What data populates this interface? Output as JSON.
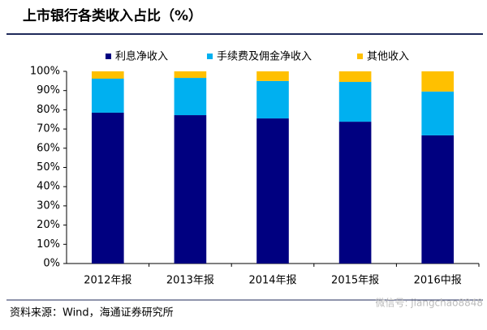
{
  "chart_data": {
    "type": "stacked-bar",
    "title": "上市银行各类收入占比（%）",
    "source": "资料来源：Wind，海通证券研究所",
    "watermark": "微信号: jiangchao8848",
    "categories": [
      "2012年报",
      "2013年报",
      "2014年报",
      "2015年报",
      "2016中报"
    ],
    "series": [
      {
        "name": "利息净收入",
        "color": "#000080",
        "values": [
          78.5,
          77.2,
          75.5,
          73.8,
          66.7
        ]
      },
      {
        "name": "手续费及佣金净收入",
        "color": "#00b0f0",
        "values": [
          17.7,
          19.4,
          19.5,
          20.7,
          22.8
        ]
      },
      {
        "name": "其他收入",
        "color": "#ffc000",
        "values": [
          3.8,
          3.4,
          5.0,
          5.5,
          10.5
        ]
      }
    ],
    "ylim": [
      0,
      100
    ],
    "yticks": [
      {
        "value": 0,
        "label": "0%"
      },
      {
        "value": 10,
        "label": "10%"
      },
      {
        "value": 20,
        "label": "20%"
      },
      {
        "value": 30,
        "label": "30%"
      },
      {
        "value": 40,
        "label": "40%"
      },
      {
        "value": 50,
        "label": "50%"
      },
      {
        "value": 60,
        "label": "60%"
      },
      {
        "value": 70,
        "label": "70%"
      },
      {
        "value": 80,
        "label": "80%"
      },
      {
        "value": 90,
        "label": "90%"
      },
      {
        "value": 100,
        "label": "100%"
      }
    ]
  }
}
